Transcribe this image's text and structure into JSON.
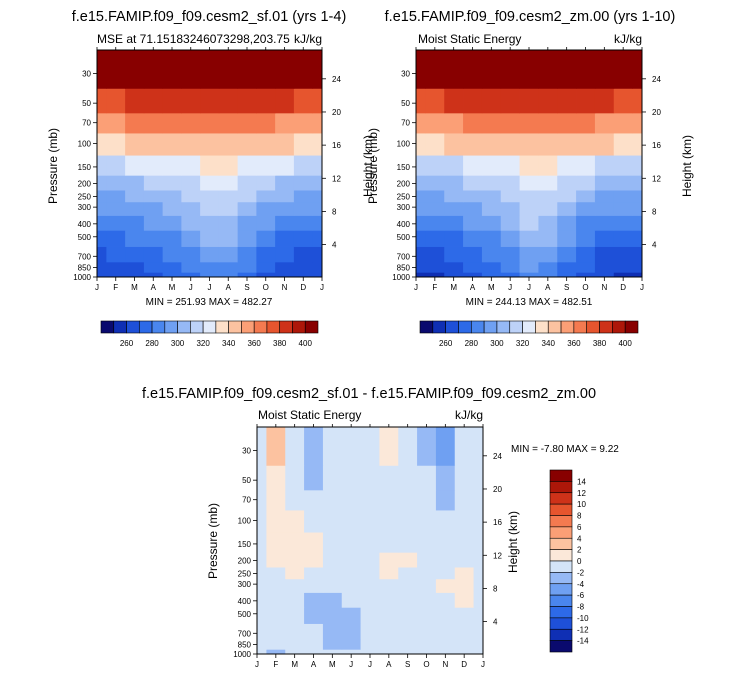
{
  "panels": [
    {
      "title": "f.e15.FAMIP.f09_f09.cesm2_sf.01 (yrs 1-4)",
      "left_label": "MSE at 71.15183246073298,203.75",
      "right_label": "kJ/kg",
      "ylabel": "Pressure (mb)",
      "ylabel_right": "Height (km)",
      "minmax": "MIN = 251.93 MAX = 482.27"
    },
    {
      "title": "f.e15.FAMIP.f09_f09.cesm2_zm.00 (yrs 1-10)",
      "left_label": "Moist Static Energy",
      "right_label": "kJ/kg",
      "ylabel": "Pressure (mb)",
      "ylabel_right": "Height (km)",
      "minmax": "MIN = 244.13 MAX = 482.51"
    },
    {
      "title": "f.e15.FAMIP.f09_f09.cesm2_sf.01 - f.e15.FAMIP.f09_f09.cesm2_zm.00",
      "left_label": "Moist Static Energy",
      "right_label": "kJ/kg",
      "ylabel": "Pressure (mb)",
      "ylabel_right": "Height (km)",
      "minmax": "MIN =  -7.80 MAX =   9.22"
    }
  ],
  "chart_data": [
    {
      "type": "heatmap",
      "title": "f.e15.FAMIP.f09_f09.cesm2_sf.01 (yrs 1-4)",
      "xlabel": "",
      "ylabel": "Pressure (mb)",
      "x": [
        "J",
        "F",
        "M",
        "A",
        "M",
        "J",
        "J",
        "A",
        "S",
        "O",
        "N",
        "D",
        "J"
      ],
      "y": [
        1000,
        850,
        700,
        500,
        400,
        300,
        250,
        200,
        150,
        100,
        70,
        50,
        30
      ],
      "yticks_pressure": [
        1000,
        850,
        700,
        500,
        400,
        300,
        250,
        200,
        150,
        100,
        70,
        50,
        30
      ],
      "yticks_height_km": [
        4,
        8,
        12,
        16,
        20,
        24
      ],
      "levels": [
        250,
        260,
        270,
        280,
        290,
        300,
        310,
        320,
        330,
        340,
        350,
        360,
        370,
        380,
        390,
        400,
        410
      ],
      "colorbar_labels": [
        "260",
        "280",
        "300",
        "320",
        "340",
        "360",
        "380",
        "400"
      ],
      "z": [
        [
          260,
          262,
          265,
          268,
          272,
          278,
          284,
          282,
          275,
          268,
          263,
          261,
          260
        ],
        [
          264,
          266,
          268,
          272,
          276,
          282,
          288,
          286,
          280,
          272,
          267,
          265,
          264
        ],
        [
          268,
          270,
          272,
          276,
          280,
          287,
          294,
          292,
          285,
          276,
          271,
          269,
          268
        ],
        [
          276,
          278,
          281,
          284,
          289,
          296,
          303,
          301,
          293,
          284,
          279,
          277,
          276
        ],
        [
          282,
          284,
          287,
          291,
          296,
          303,
          309,
          307,
          299,
          290,
          285,
          283,
          282
        ],
        [
          291,
          292,
          295,
          299,
          304,
          309,
          314,
          312,
          306,
          299,
          294,
          292,
          291
        ],
        [
          297,
          298,
          301,
          305,
          309,
          314,
          318,
          316,
          311,
          305,
          300,
          298,
          297
        ],
        [
          305,
          306,
          308,
          311,
          315,
          319,
          322,
          321,
          317,
          312,
          308,
          306,
          305
        ],
        [
          317,
          318,
          320,
          323,
          326,
          329,
          331,
          330,
          328,
          324,
          320,
          318,
          317
        ],
        [
          338,
          339,
          341,
          343,
          345,
          347,
          348,
          347,
          346,
          344,
          341,
          339,
          338
        ],
        [
          355,
          357,
          360,
          362,
          363,
          364,
          365,
          364,
          363,
          361,
          358,
          356,
          355
        ],
        [
          374,
          379,
          384,
          386,
          387,
          387,
          388,
          387,
          386,
          384,
          381,
          377,
          374
        ],
        [
          418,
          420,
          424,
          430,
          436,
          442,
          446,
          445,
          440,
          432,
          425,
          421,
          418
        ]
      ],
      "zmin": 251.93,
      "zmax": 482.27
    },
    {
      "type": "heatmap",
      "title": "f.e15.FAMIP.f09_f09.cesm2_zm.00 (yrs 1-10)",
      "xlabel": "",
      "ylabel": "Pressure (mb)",
      "x": [
        "J",
        "F",
        "M",
        "A",
        "M",
        "J",
        "J",
        "A",
        "S",
        "O",
        "N",
        "D",
        "J"
      ],
      "y": [
        1000,
        850,
        700,
        500,
        400,
        300,
        250,
        200,
        150,
        100,
        70,
        50,
        30
      ],
      "yticks_pressure": [
        1000,
        850,
        700,
        500,
        400,
        300,
        250,
        200,
        150,
        100,
        70,
        50,
        30
      ],
      "yticks_height_km": [
        4,
        8,
        12,
        16,
        20,
        24
      ],
      "levels": [
        250,
        260,
        270,
        280,
        290,
        300,
        310,
        320,
        330,
        340,
        350,
        360,
        370,
        380,
        390,
        400,
        410
      ],
      "colorbar_labels": [
        "260",
        "280",
        "300",
        "320",
        "340",
        "360",
        "380",
        "400"
      ],
      "z": [
        [
          257,
          259,
          262,
          266,
          271,
          278,
          285,
          282,
          274,
          266,
          260,
          258,
          257
        ],
        [
          261,
          263,
          266,
          270,
          275,
          283,
          290,
          287,
          279,
          270,
          264,
          262,
          261
        ],
        [
          266,
          268,
          271,
          275,
          280,
          288,
          296,
          293,
          284,
          275,
          269,
          267,
          266
        ],
        [
          274,
          276,
          279,
          283,
          288,
          296,
          304,
          301,
          292,
          283,
          277,
          275,
          274
        ],
        [
          281,
          283,
          286,
          290,
          295,
          303,
          310,
          307,
          298,
          289,
          284,
          282,
          281
        ],
        [
          290,
          291,
          294,
          298,
          303,
          309,
          315,
          313,
          305,
          298,
          293,
          291,
          290
        ],
        [
          296,
          297,
          300,
          304,
          308,
          314,
          319,
          317,
          310,
          304,
          299,
          297,
          296
        ],
        [
          304,
          305,
          307,
          310,
          314,
          319,
          323,
          321,
          316,
          311,
          307,
          305,
          304
        ],
        [
          316,
          317,
          319,
          322,
          325,
          329,
          332,
          330,
          327,
          323,
          319,
          317,
          316
        ],
        [
          337,
          338,
          340,
          342,
          344,
          347,
          349,
          347,
          345,
          343,
          340,
          338,
          337
        ],
        [
          354,
          356,
          359,
          361,
          363,
          364,
          365,
          364,
          363,
          360,
          357,
          355,
          354
        ],
        [
          373,
          378,
          383,
          385,
          387,
          387,
          388,
          387,
          386,
          384,
          380,
          376,
          373
        ],
        [
          416,
          419,
          423,
          429,
          435,
          442,
          447,
          445,
          439,
          431,
          424,
          420,
          416
        ]
      ],
      "zmin": 244.13,
      "zmax": 482.51
    },
    {
      "type": "heatmap",
      "title": "f.e15.FAMIP.f09_f09.cesm2_sf.01 - f.e15.FAMIP.f09_f09.cesm2_zm.00",
      "xlabel": "",
      "ylabel": "Pressure (mb)",
      "x": [
        "J",
        "F",
        "M",
        "A",
        "M",
        "J",
        "J",
        "A",
        "S",
        "O",
        "N",
        "D",
        "J"
      ],
      "y": [
        1000,
        850,
        700,
        500,
        400,
        300,
        250,
        200,
        150,
        100,
        70,
        50,
        30
      ],
      "yticks_pressure": [
        1000,
        850,
        700,
        500,
        400,
        300,
        250,
        200,
        150,
        100,
        70,
        50,
        30
      ],
      "yticks_height_km": [
        4,
        8,
        12,
        16,
        20,
        24
      ],
      "levels": [
        -16,
        -14,
        -12,
        -10,
        -8,
        -6,
        -4,
        -2,
        0,
        2,
        4,
        6,
        8,
        10,
        12,
        14,
        16
      ],
      "colorbar_labels": [
        "14",
        "12",
        "10",
        "8",
        "6",
        "4",
        "2",
        "0",
        "-2",
        "-4",
        "-6",
        "-8",
        "-10",
        "-12",
        "-14"
      ],
      "z": [
        [
          -1.5,
          -3.5,
          -1.5,
          -0.5,
          -2.0,
          -1.5,
          -0.5,
          -1.0,
          -0.5,
          -1.0,
          -0.5,
          -0.5,
          -1.5
        ],
        [
          -1.5,
          -2.0,
          -1.5,
          -1.0,
          -2.5,
          -2.5,
          -1.0,
          -1.0,
          -0.5,
          -1.0,
          -1.0,
          -0.5,
          -1.5
        ],
        [
          -1.0,
          -2.0,
          -1.0,
          -2.0,
          -2.5,
          -2.5,
          -1.0,
          -0.5,
          -0.5,
          -1.0,
          -0.5,
          -0.5,
          -1.0
        ],
        [
          -0.5,
          -2.0,
          -0.5,
          -2.5,
          -3.0,
          -2.5,
          -1.0,
          -0.5,
          -0.5,
          -1.0,
          -0.5,
          -0.5,
          -0.5
        ],
        [
          -1.0,
          -2.0,
          -0.5,
          -2.5,
          -2.5,
          -2.0,
          -1.0,
          -0.5,
          -0.5,
          -1.0,
          -0.5,
          0.5,
          -1.0
        ],
        [
          -0.5,
          -1.0,
          -0.5,
          -1.0,
          -1.0,
          -1.0,
          -0.5,
          -0.5,
          -0.5,
          -0.5,
          0.5,
          1.0,
          -0.5
        ],
        [
          -0.5,
          -0.5,
          0.5,
          -0.5,
          -0.5,
          -0.5,
          -0.5,
          0.5,
          -0.5,
          -0.5,
          -0.5,
          0.5,
          -0.5
        ],
        [
          -0.5,
          0.5,
          1.0,
          0.5,
          -0.5,
          -0.5,
          -0.5,
          1.0,
          0.5,
          -0.5,
          -0.5,
          -0.5,
          -0.5
        ],
        [
          -0.5,
          0.5,
          1.0,
          0.5,
          -0.5,
          -0.5,
          -0.5,
          -0.5,
          -0.5,
          -0.5,
          -0.5,
          -1.0,
          -0.5
        ],
        [
          -0.5,
          1.0,
          1.0,
          -0.5,
          -0.5,
          -0.5,
          -0.5,
          -0.5,
          -0.5,
          -0.5,
          -0.5,
          -1.0,
          -0.5
        ],
        [
          -0.5,
          1.0,
          -1.0,
          -2.0,
          -0.5,
          -0.5,
          -0.5,
          -0.5,
          -0.5,
          -1.0,
          -2.5,
          -1.5,
          -0.5
        ],
        [
          -0.5,
          1.5,
          -1.5,
          -3.0,
          -1.5,
          -0.5,
          -0.5,
          -0.5,
          -0.5,
          -2.0,
          -3.5,
          -1.0,
          -0.5
        ],
        [
          -0.5,
          2.5,
          -2.0,
          -3.5,
          -1.5,
          -0.5,
          -0.5,
          0.0,
          -0.5,
          -3.0,
          -4.5,
          -0.5,
          -0.5
        ]
      ],
      "zmin": -7.8,
      "zmax": 9.22
    }
  ],
  "colors": {
    "abs": [
      "#0a0a6e",
      "#0f2fb4",
      "#1e50d8",
      "#2d6ae8",
      "#4a86ee",
      "#6fa0f2",
      "#96b9f5",
      "#bdd2f8",
      "#e2ebfb",
      "#fde0c9",
      "#fcc2a0",
      "#fb9f76",
      "#f47a50",
      "#e6552e",
      "#ce3219",
      "#ad1709",
      "#880000"
    ],
    "diff": [
      "#0a0a6e",
      "#0f2fb4",
      "#1e50d8",
      "#2d6ae8",
      "#4a86ee",
      "#6fa0f2",
      "#96b9f5",
      "#d4e4f8",
      "#fbe8d9",
      "#fcc2a0",
      "#fb9f76",
      "#f47a50",
      "#e6552e",
      "#ce3219",
      "#ad1709",
      "#880000"
    ]
  }
}
